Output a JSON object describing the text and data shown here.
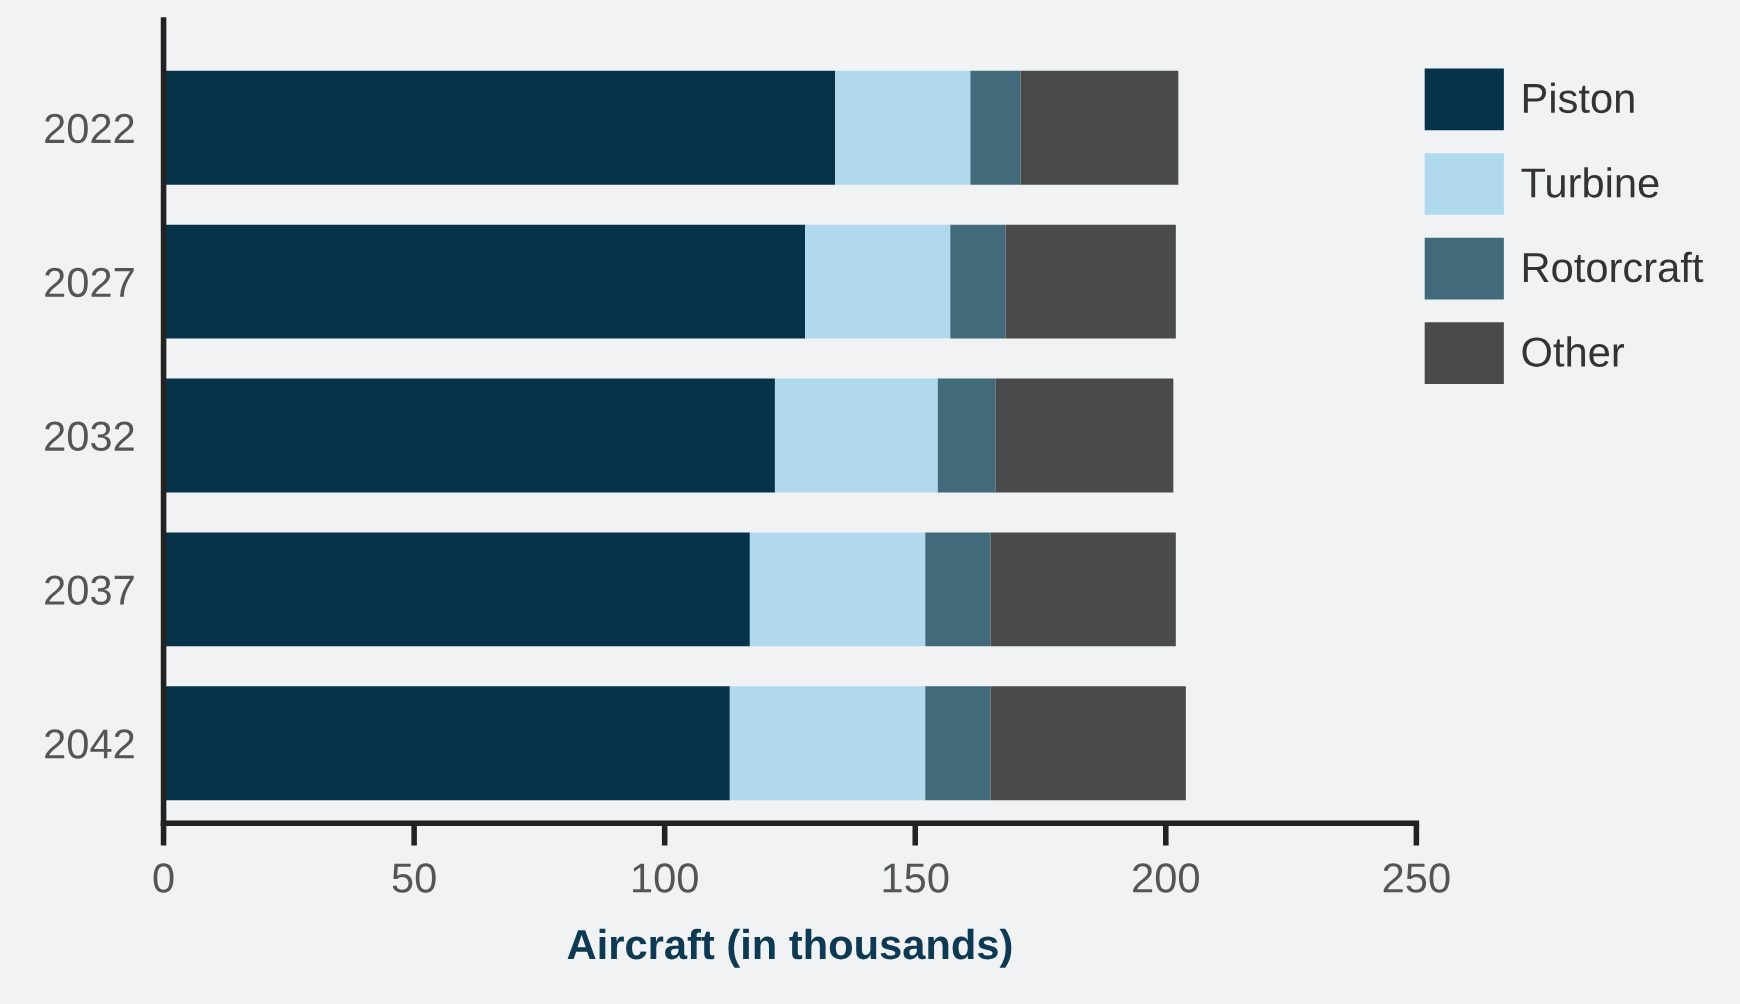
{
  "chart_data": {
    "type": "bar",
    "orientation": "horizontal",
    "stacked": true,
    "categories": [
      "2022",
      "2027",
      "2032",
      "2037",
      "2042"
    ],
    "series": [
      {
        "name": "Piston",
        "color": "#06324a",
        "values": [
          134,
          128,
          122,
          117,
          113
        ]
      },
      {
        "name": "Turbine",
        "color": "#b1d9ed",
        "values": [
          27,
          29,
          32.5,
          35,
          39
        ]
      },
      {
        "name": "Rotorcraft",
        "color": "#416a7b",
        "values": [
          10,
          11,
          11.5,
          13,
          13
        ]
      },
      {
        "name": "Other",
        "color": "#4a4a4c",
        "values": [
          31.5,
          34,
          35.5,
          37,
          39
        ]
      }
    ],
    "xlabel": "Aircraft (in thousands)",
    "xlim": [
      0,
      250
    ],
    "xticks": [
      0,
      50,
      100,
      150,
      200,
      250
    ],
    "grid": false,
    "legend": "right"
  }
}
